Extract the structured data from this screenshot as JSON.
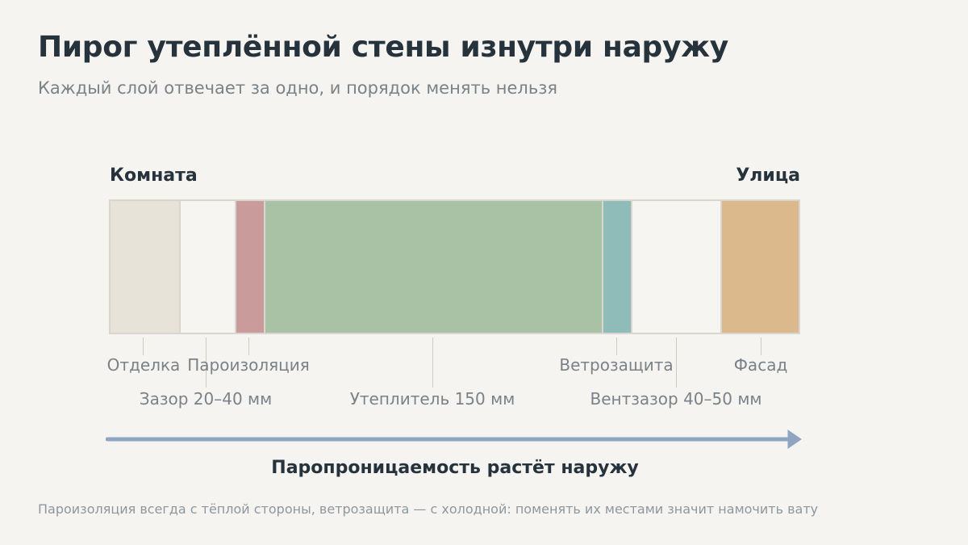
{
  "title": "Пирог утеплённой стены изнутри наружу",
  "subtitle": "Каждый слой отвечает за одно, и порядок менять нельзя",
  "ends": {
    "inside": "Комната",
    "outside": "Улица"
  },
  "layers": [
    {
      "label": "Отделка",
      "color": "#e8e3d8"
    },
    {
      "label": "Зазор 20–40 мм",
      "color": "#f6f5f1"
    },
    {
      "label": "Пароизоляция",
      "color": "#c99b9a"
    },
    {
      "label": "Утеплитель 150 мм",
      "color": "#a9c1a4"
    },
    {
      "label": "Ветрозащита",
      "color": "#8fbcb9"
    },
    {
      "label": "Вентзазор 40–50 мм",
      "color": "#f6f5f1"
    },
    {
      "label": "Фасад",
      "color": "#dbb98c"
    }
  ],
  "arrow": {
    "caption": "Паропроницаемость растёт наружу",
    "color": "#8fa5c2"
  },
  "footnote": "Пароизоляция всегда с тёплой стороны, ветрозащита — с холодной: поменять их местами значит намочить вату"
}
